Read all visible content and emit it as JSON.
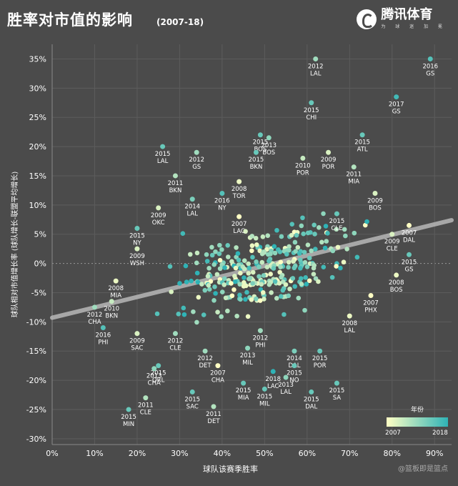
{
  "header": {
    "title": "胜率对市值的影响",
    "subtitle": "(2007-18)",
    "logo_text": "腾讯体育",
    "logo_sub": "为 球 迷 加 冕"
  },
  "watermark": "@篮板即是篮点",
  "chart_data": {
    "type": "scatter",
    "title": "胜率对市值的影响",
    "subtitle": "(2007-18)",
    "xlabel": "球队该赛季胜率",
    "ylabel": "球队相对市值增长率 (球队增长-联盟平均增长)",
    "x_ticks": [
      "0%",
      "10%",
      "20%",
      "30%",
      "40%",
      "50%",
      "60%",
      "70%",
      "80%",
      "90%"
    ],
    "y_ticks": [
      "35%",
      "30%",
      "25%",
      "20%",
      "15%",
      "10%",
      "5%",
      "0%",
      "-5%",
      "-10%",
      "-15%",
      "-20%",
      "-25%",
      "-30%"
    ],
    "xlim": [
      0,
      0.94
    ],
    "ylim": [
      -0.31,
      0.375
    ],
    "grid": true,
    "trendline": {
      "x": [
        0,
        0.94
      ],
      "y": [
        -0.093,
        0.074
      ]
    },
    "color_legend": {
      "title": "年份",
      "min_label": "2007",
      "max_label": "2018",
      "min_color": "#ffffc4",
      "max_color": "#2fb3b6",
      "position": "bottom-right"
    },
    "labeled_points": [
      {
        "x": 0.62,
        "y": 0.35,
        "year": 2012,
        "team": "LAL"
      },
      {
        "x": 0.89,
        "y": 0.35,
        "year": 2016,
        "team": "GS"
      },
      {
        "x": 0.81,
        "y": 0.285,
        "year": 2017,
        "team": "GS"
      },
      {
        "x": 0.61,
        "y": 0.275,
        "year": 2015,
        "team": "CHI"
      },
      {
        "x": 0.49,
        "y": 0.22,
        "year": 2015,
        "team": "BOS"
      },
      {
        "x": 0.51,
        "y": 0.215,
        "year": 2013,
        "team": "BOS"
      },
      {
        "x": 0.73,
        "y": 0.22,
        "year": 2015,
        "team": "ATL"
      },
      {
        "x": 0.26,
        "y": 0.2,
        "year": 2015,
        "team": "LAL"
      },
      {
        "x": 0.34,
        "y": 0.19,
        "year": 2012,
        "team": "GS"
      },
      {
        "x": 0.48,
        "y": 0.19,
        "year": 2015,
        "team": "BKN"
      },
      {
        "x": 0.65,
        "y": 0.19,
        "year": 2009,
        "team": "POR"
      },
      {
        "x": 0.59,
        "y": 0.18,
        "year": 2010,
        "team": "POR"
      },
      {
        "x": 0.71,
        "y": 0.165,
        "year": 2011,
        "team": "MIA"
      },
      {
        "x": 0.29,
        "y": 0.15,
        "year": 2011,
        "team": "BKN"
      },
      {
        "x": 0.44,
        "y": 0.14,
        "year": 2008,
        "team": "TOR"
      },
      {
        "x": 0.4,
        "y": 0.12,
        "year": 2016,
        "team": "NY"
      },
      {
        "x": 0.33,
        "y": 0.11,
        "year": 2014,
        "team": "LAL"
      },
      {
        "x": 0.76,
        "y": 0.12,
        "year": 2009,
        "team": "BOS"
      },
      {
        "x": 0.25,
        "y": 0.095,
        "year": 2009,
        "team": "OKC"
      },
      {
        "x": 0.67,
        "y": 0.085,
        "year": 2015,
        "team": "CLE"
      },
      {
        "x": 0.44,
        "y": 0.08,
        "year": 2007,
        "team": "LAC"
      },
      {
        "x": 0.2,
        "y": 0.06,
        "year": 2015,
        "team": "NY"
      },
      {
        "x": 0.84,
        "y": 0.065,
        "year": 2007,
        "team": "DAL"
      },
      {
        "x": 0.8,
        "y": 0.05,
        "year": 2009,
        "team": "CLE"
      },
      {
        "x": 0.2,
        "y": 0.025,
        "year": 2009,
        "team": "WSH"
      },
      {
        "x": 0.84,
        "y": 0.015,
        "year": 2015,
        "team": "GS"
      },
      {
        "x": 0.15,
        "y": -0.03,
        "year": 2008,
        "team": "MIA"
      },
      {
        "x": 0.81,
        "y": -0.02,
        "year": 2008,
        "team": "BOS"
      },
      {
        "x": 0.14,
        "y": -0.065,
        "year": 2010,
        "team": "BKN"
      },
      {
        "x": 0.75,
        "y": -0.055,
        "year": 2007,
        "team": "PHX"
      },
      {
        "x": 0.1,
        "y": -0.075,
        "year": 2012,
        "team": "CHA"
      },
      {
        "x": 0.7,
        "y": -0.09,
        "year": 2008,
        "team": "LAL"
      },
      {
        "x": 0.12,
        "y": -0.11,
        "year": 2016,
        "team": "PHI"
      },
      {
        "x": 0.2,
        "y": -0.12,
        "year": 2009,
        "team": "SAC"
      },
      {
        "x": 0.29,
        "y": -0.12,
        "year": 2012,
        "team": "CLE"
      },
      {
        "x": 0.49,
        "y": -0.115,
        "year": 2012,
        "team": "PHI"
      },
      {
        "x": 0.36,
        "y": -0.15,
        "year": 2012,
        "team": "DET"
      },
      {
        "x": 0.46,
        "y": -0.145,
        "year": 2013,
        "team": "MIL"
      },
      {
        "x": 0.57,
        "y": -0.15,
        "year": 2014,
        "team": "DAL"
      },
      {
        "x": 0.63,
        "y": -0.15,
        "year": 2015,
        "team": "POR"
      },
      {
        "x": 0.25,
        "y": -0.175,
        "year": 2015,
        "team": "ORL"
      },
      {
        "x": 0.24,
        "y": -0.18,
        "year": 2013,
        "team": "CHA"
      },
      {
        "x": 0.39,
        "y": -0.175,
        "year": 2007,
        "team": "CHA"
      },
      {
        "x": 0.57,
        "y": -0.175,
        "year": 2015,
        "team": "NO"
      },
      {
        "x": 0.52,
        "y": -0.185,
        "year": 2018,
        "team": "LAC"
      },
      {
        "x": 0.55,
        "y": -0.195,
        "year": 2013,
        "team": "LAL"
      },
      {
        "x": 0.45,
        "y": -0.205,
        "year": 2015,
        "team": "MIA"
      },
      {
        "x": 0.33,
        "y": -0.22,
        "year": 2015,
        "team": "SAC"
      },
      {
        "x": 0.5,
        "y": -0.215,
        "year": 2015,
        "team": "MIL"
      },
      {
        "x": 0.61,
        "y": -0.22,
        "year": 2015,
        "team": "DAL"
      },
      {
        "x": 0.67,
        "y": -0.205,
        "year": 2015,
        "team": "SA"
      },
      {
        "x": 0.22,
        "y": -0.23,
        "year": 2011,
        "team": "CLE"
      },
      {
        "x": 0.18,
        "y": -0.25,
        "year": 2015,
        "team": "MIN"
      },
      {
        "x": 0.38,
        "y": -0.245,
        "year": 2011,
        "team": "DET"
      }
    ]
  }
}
